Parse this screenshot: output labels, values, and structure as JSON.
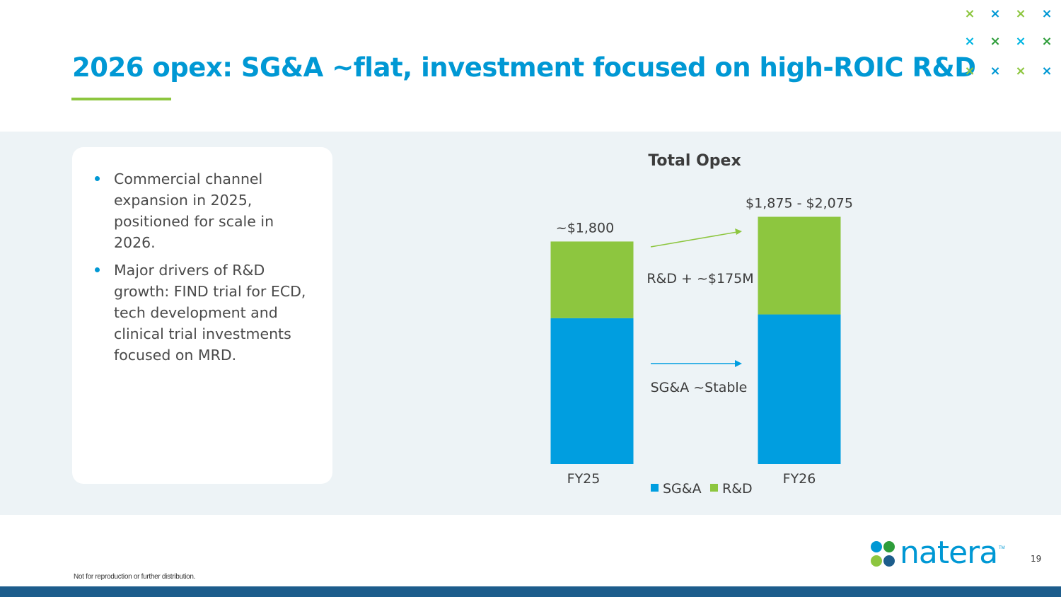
{
  "slide": {
    "title": "2026 opex: SG&A ~flat, investment focused on high-ROIC R&D",
    "page_number": "19",
    "footer_note": "Not for reproduction or further distribution.",
    "logo_text": "natera",
    "logo_tm": "TM",
    "bullets": [
      "Commercial channel expansion in 2025, positioned for scale in 2026.",
      "Major drivers of R&D growth: FIND trial for ECD, tech development and clinical trial investments focused on MRD."
    ],
    "decor_marks": [
      {
        "glyph": "×",
        "color": "#8dc63f"
      },
      {
        "glyph": "×",
        "color": "#0098d4"
      },
      {
        "glyph": "×",
        "color": "#8dc63f"
      },
      {
        "glyph": "×",
        "color": "#0098d4"
      },
      {
        "glyph": "×",
        "color": "#00b5e2"
      },
      {
        "glyph": "×",
        "color": "#2e9d3a"
      },
      {
        "glyph": "×",
        "color": "#00b5e2"
      },
      {
        "glyph": "×",
        "color": "#2e9d3a"
      },
      {
        "glyph": "×",
        "color": "#8dc63f"
      },
      {
        "glyph": "×",
        "color": "#0098d4"
      },
      {
        "glyph": "×",
        "color": "#8dc63f"
      },
      {
        "glyph": "×",
        "color": "#0098d4"
      }
    ]
  },
  "colors": {
    "title": "#0098d4",
    "sga": "#009ee0",
    "rd": "#8dc63f",
    "chart_title": "#1d4f7c"
  },
  "chart_data": {
    "type": "bar",
    "stacked": true,
    "title": "Total Opex",
    "categories": [
      "FY25",
      "FY26"
    ],
    "series": [
      {
        "name": "SG&A",
        "values": [
          1180,
          1210
        ]
      },
      {
        "name": "R&D",
        "values": [
          620,
          790
        ]
      }
    ],
    "total_labels": [
      "~$1,800",
      "$1,875  - $2,075"
    ],
    "annotations": [
      {
        "text": "R&D + ~$175M",
        "series": "R&D"
      },
      {
        "text": "SG&A ~Stable",
        "series": "SG&A"
      }
    ],
    "ylim": [
      0,
      2100
    ],
    "legend": "bottom-center",
    "grid": false
  }
}
